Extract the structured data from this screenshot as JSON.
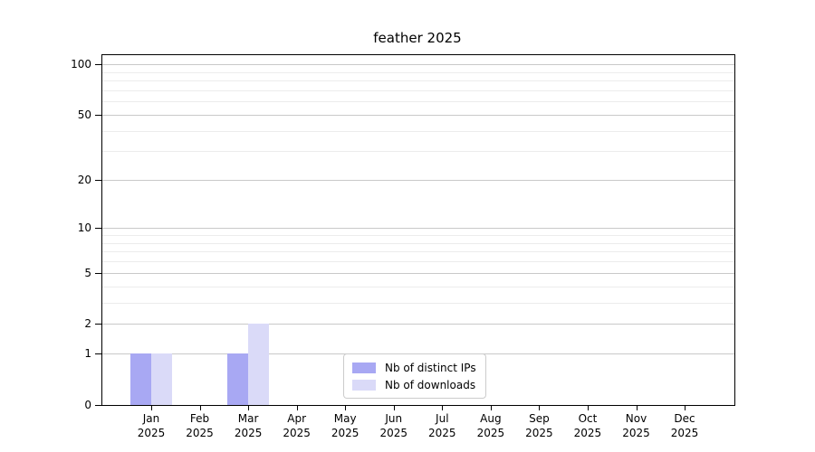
{
  "title": "feather 2025",
  "chart_data": {
    "type": "bar",
    "title": "feather 2025",
    "xlabel": "",
    "ylabel": "",
    "x_months": [
      "Jan",
      "Feb",
      "Mar",
      "Apr",
      "May",
      "Jun",
      "Jul",
      "Aug",
      "Sep",
      "Oct",
      "Nov",
      "Dec"
    ],
    "x_year": "2025",
    "categories": [
      "Jan 2025",
      "Feb 2025",
      "Mar 2025",
      "Apr 2025",
      "May 2025",
      "Jun 2025",
      "Jul 2025",
      "Aug 2025",
      "Sep 2025",
      "Oct 2025",
      "Nov 2025",
      "Dec 2025"
    ],
    "series": [
      {
        "name": "Nb of distinct IPs",
        "color": "#a8a8f3",
        "values": [
          1,
          0,
          1,
          0,
          0,
          0,
          0,
          0,
          0,
          0,
          0,
          0
        ]
      },
      {
        "name": "Nb of downloads",
        "color": "#dadaf8",
        "values": [
          1,
          0,
          2,
          0,
          0,
          0,
          0,
          0,
          0,
          0,
          0,
          0
        ]
      }
    ],
    "y_scale": "log10(1+x)",
    "y_ticks": [
      0,
      1,
      2,
      5,
      10,
      20,
      50,
      100
    ],
    "y_minor_ticks": [
      3,
      4,
      6,
      7,
      8,
      9,
      30,
      40,
      60,
      70,
      80,
      90
    ],
    "ylim": [
      0,
      113
    ],
    "grid": true,
    "legend_position": "lower center"
  },
  "colors": {
    "background": "#ffffff",
    "axis": "#000000",
    "grid_major": "#c9c9c9",
    "grid_minor": "#ececec",
    "legend_border": "#cccccc",
    "bar_distinct_ips": "#a8a8f3",
    "bar_downloads": "#dadaf8"
  }
}
